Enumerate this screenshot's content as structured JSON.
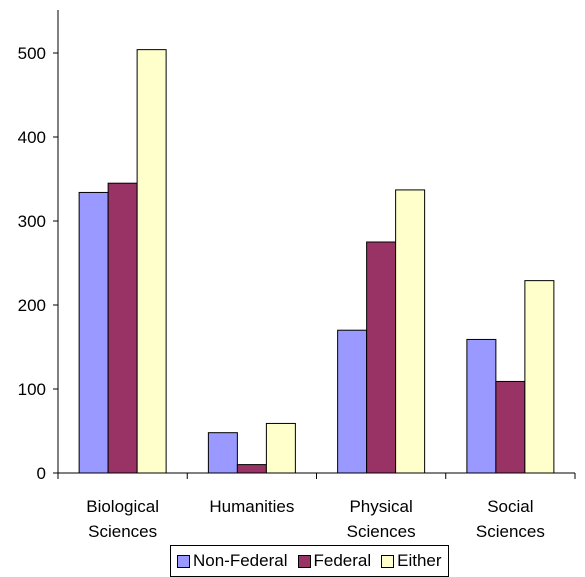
{
  "chart_data": {
    "type": "bar",
    "categories": [
      [
        "Biological",
        "Sciences"
      ],
      [
        "Humanities"
      ],
      [
        "Physical",
        "Sciences"
      ],
      [
        "Social",
        "Sciences"
      ]
    ],
    "series": [
      {
        "name": "Non-Federal",
        "color": "#9999ff",
        "values": [
          334,
          48,
          170,
          159
        ]
      },
      {
        "name": "Federal",
        "color": "#993366",
        "values": [
          345,
          10,
          275,
          109
        ]
      },
      {
        "name": "Either",
        "color": "#ffffcc",
        "values": [
          504,
          59,
          337,
          229
        ]
      }
    ],
    "ylim": [
      0,
      500
    ],
    "yticks": [
      0,
      100,
      200,
      300,
      400,
      500
    ],
    "legend_position": "bottom",
    "grid": false
  }
}
